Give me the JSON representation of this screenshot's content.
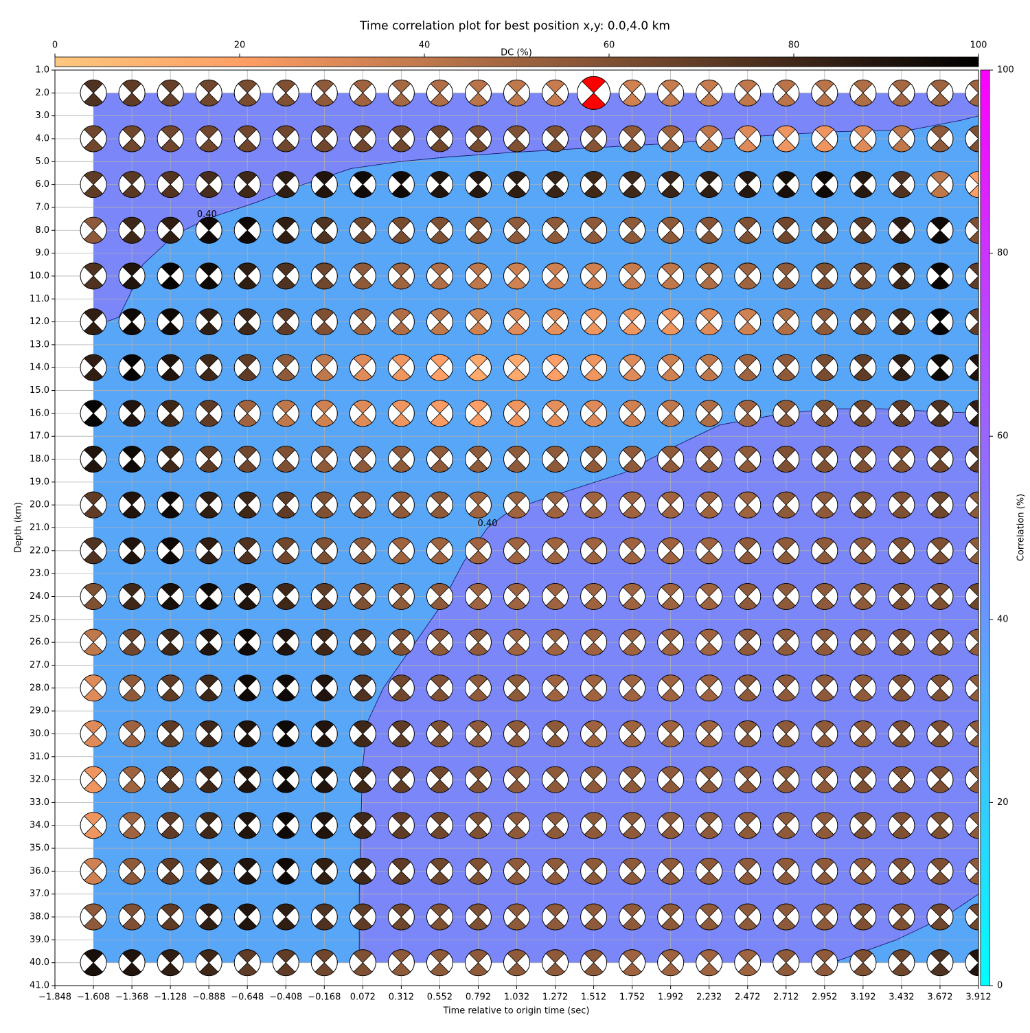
{
  "chart_data": {
    "type": "beachball-grid",
    "title": "Time correlation plot for best position x,y: 0.0,4.0 km",
    "x_label": "Time relative to origin time (sec)",
    "y_label": "Depth (km)",
    "dc_label": "DC (%)",
    "corr_label": "Correlation (%)",
    "xlim": [
      -1.848,
      3.912
    ],
    "xticks": [
      {
        "value": -1.848,
        "label": "−1.848"
      },
      {
        "value": -1.608,
        "label": "−1.608"
      },
      {
        "value": -1.368,
        "label": "−1.368"
      },
      {
        "value": -1.128,
        "label": "−1.128"
      },
      {
        "value": -0.888,
        "label": "−0.888"
      },
      {
        "value": -0.648,
        "label": "−0.648"
      },
      {
        "value": -0.408,
        "label": "−0.408"
      },
      {
        "value": -0.168,
        "label": "−0.168"
      },
      0.072,
      0.312,
      0.552,
      0.792,
      1.032,
      1.272,
      1.512,
      1.752,
      1.992,
      2.232,
      2.472,
      2.712,
      2.952,
      3.192,
      3.432,
      3.672,
      3.912
    ],
    "ylim": [
      41,
      1
    ],
    "yticks": [
      {
        "value": 1,
        "label": "1.0"
      },
      {
        "value": 2,
        "label": "2.0"
      },
      {
        "value": 3,
        "label": "3.0"
      },
      {
        "value": 4,
        "label": "4.0"
      },
      {
        "value": 5,
        "label": "5.0"
      },
      {
        "value": 6,
        "label": "6.0"
      },
      {
        "value": 7,
        "label": "7.0"
      },
      {
        "value": 8,
        "label": "8.0"
      },
      {
        "value": 9,
        "label": "9.0"
      },
      {
        "value": 10,
        "label": "10.0"
      },
      {
        "value": 11,
        "label": "11.0"
      },
      {
        "value": 12,
        "label": "12.0"
      },
      {
        "value": 13,
        "label": "13.0"
      },
      {
        "value": 14,
        "label": "14.0"
      },
      {
        "value": 15,
        "label": "15.0"
      },
      {
        "value": 16,
        "label": "16.0"
      },
      {
        "value": 17,
        "label": "17.0"
      },
      {
        "value": 18,
        "label": "18.0"
      },
      {
        "value": 19,
        "label": "19.0"
      },
      {
        "value": 20,
        "label": "20.0"
      },
      {
        "value": 21,
        "label": "21.0"
      },
      {
        "value": 22,
        "label": "22.0"
      },
      {
        "value": 23,
        "label": "23.0"
      },
      {
        "value": 24,
        "label": "24.0"
      },
      {
        "value": 25,
        "label": "25.0"
      },
      {
        "value": 26,
        "label": "26.0"
      },
      {
        "value": 27,
        "label": "27.0"
      },
      {
        "value": 28,
        "label": "28.0"
      },
      {
        "value": 29,
        "label": "29.0"
      },
      {
        "value": 30,
        "label": "30.0"
      },
      {
        "value": 31,
        "label": "31.0"
      },
      {
        "value": 32,
        "label": "32.0"
      },
      {
        "value": 33,
        "label": "33.0"
      },
      {
        "value": 34,
        "label": "34.0"
      },
      {
        "value": 35,
        "label": "35.0"
      },
      {
        "value": 36,
        "label": "36.0"
      },
      {
        "value": 37,
        "label": "37.0"
      },
      {
        "value": 38,
        "label": "38.0"
      },
      {
        "value": 39,
        "label": "39.0"
      },
      {
        "value": 40,
        "label": "40.0"
      },
      {
        "value": 41,
        "label": "41.0"
      }
    ],
    "grid": true,
    "dclim": [
      0,
      100
    ],
    "dcticks": [
      0,
      20,
      40,
      60,
      80,
      100
    ],
    "corrlim": [
      0,
      100
    ],
    "corrticks": [
      0,
      20,
      40,
      60,
      80,
      100
    ],
    "region_colors": {
      "high": "#7b86f8",
      "low": "#58a6f7"
    },
    "best": {
      "row": 0,
      "col": 13,
      "color": "#ff0000"
    },
    "times": [
      -1.608,
      -1.368,
      -1.128,
      -0.888,
      -0.648,
      -0.408,
      -0.168,
      0.072,
      0.312,
      0.552,
      0.792,
      1.032,
      1.272,
      1.512,
      1.752,
      1.992,
      2.232,
      2.472,
      2.712,
      2.952,
      3.192,
      3.432,
      3.672,
      3.912
    ],
    "depths": [
      2,
      4,
      6,
      8,
      10,
      12,
      14,
      16,
      18,
      20,
      22,
      24,
      26,
      28,
      30,
      32,
      34,
      36,
      38,
      40
    ],
    "dc": [
      [
        75,
        70,
        68,
        65,
        62,
        60,
        55,
        50,
        48,
        45,
        42,
        40,
        38,
        40,
        35,
        38,
        38,
        40,
        42,
        42,
        45,
        48,
        50,
        50
      ],
      [
        65,
        65,
        65,
        65,
        65,
        65,
        65,
        65,
        65,
        65,
        62,
        60,
        60,
        58,
        55,
        50,
        40,
        30,
        25,
        25,
        30,
        40,
        55,
        60
      ],
      [
        70,
        72,
        74,
        78,
        80,
        85,
        90,
        95,
        95,
        90,
        88,
        85,
        82,
        80,
        80,
        82,
        85,
        88,
        92,
        95,
        88,
        75,
        40,
        20
      ],
      [
        55,
        80,
        85,
        95,
        95,
        85,
        75,
        65,
        62,
        60,
        58,
        55,
        55,
        55,
        55,
        55,
        58,
        60,
        65,
        68,
        72,
        85,
        95,
        60
      ],
      [
        75,
        90,
        98,
        95,
        85,
        75,
        65,
        55,
        50,
        45,
        40,
        35,
        35,
        35,
        38,
        40,
        45,
        50,
        55,
        60,
        65,
        80,
        97,
        70
      ],
      [
        85,
        95,
        95,
        85,
        80,
        70,
        60,
        50,
        45,
        40,
        35,
        30,
        28,
        25,
        25,
        25,
        30,
        35,
        45,
        55,
        65,
        80,
        98,
        70
      ],
      [
        85,
        98,
        90,
        80,
        70,
        55,
        40,
        30,
        25,
        20,
        15,
        15,
        20,
        25,
        30,
        35,
        40,
        50,
        55,
        62,
        70,
        85,
        95,
        90
      ],
      [
        98,
        90,
        80,
        70,
        50,
        40,
        35,
        30,
        25,
        22,
        20,
        25,
        28,
        30,
        35,
        40,
        45,
        50,
        55,
        60,
        65,
        70,
        75,
        85
      ],
      [
        90,
        95,
        80,
        70,
        65,
        60,
        55,
        55,
        55,
        55,
        55,
        55,
        55,
        55,
        55,
        55,
        55,
        55,
        60,
        60,
        60,
        60,
        65,
        70
      ],
      [
        70,
        90,
        95,
        85,
        80,
        70,
        60,
        55,
        55,
        55,
        50,
        50,
        50,
        50,
        50,
        50,
        50,
        50,
        55,
        55,
        60,
        60,
        65,
        55
      ],
      [
        75,
        90,
        95,
        85,
        75,
        65,
        60,
        55,
        50,
        50,
        50,
        50,
        50,
        50,
        50,
        50,
        50,
        55,
        55,
        55,
        55,
        60,
        60,
        55
      ],
      [
        60,
        80,
        92,
        95,
        90,
        80,
        70,
        60,
        55,
        55,
        50,
        50,
        50,
        50,
        50,
        50,
        50,
        55,
        55,
        55,
        55,
        60,
        60,
        65
      ],
      [
        40,
        65,
        80,
        90,
        95,
        90,
        80,
        70,
        60,
        55,
        55,
        50,
        50,
        50,
        50,
        50,
        50,
        55,
        55,
        55,
        55,
        60,
        60,
        55
      ],
      [
        30,
        55,
        70,
        80,
        95,
        95,
        90,
        75,
        65,
        60,
        55,
        55,
        50,
        50,
        50,
        50,
        50,
        55,
        55,
        55,
        55,
        60,
        60,
        55
      ],
      [
        30,
        50,
        70,
        80,
        90,
        95,
        90,
        80,
        70,
        60,
        55,
        55,
        55,
        50,
        50,
        50,
        50,
        55,
        55,
        55,
        55,
        60,
        60,
        55
      ],
      [
        25,
        50,
        70,
        80,
        90,
        95,
        90,
        80,
        70,
        65,
        60,
        55,
        55,
        55,
        55,
        55,
        55,
        55,
        55,
        55,
        60,
        60,
        60,
        55
      ],
      [
        25,
        50,
        70,
        80,
        90,
        95,
        90,
        80,
        70,
        65,
        60,
        55,
        55,
        55,
        55,
        55,
        55,
        55,
        55,
        55,
        60,
        60,
        60,
        55
      ],
      [
        35,
        55,
        70,
        80,
        90,
        95,
        85,
        80,
        70,
        65,
        60,
        55,
        55,
        55,
        55,
        55,
        55,
        55,
        55,
        55,
        55,
        60,
        60,
        55
      ],
      [
        55,
        60,
        70,
        85,
        90,
        85,
        75,
        70,
        65,
        60,
        60,
        55,
        55,
        55,
        55,
        55,
        55,
        55,
        55,
        55,
        60,
        60,
        65,
        65
      ],
      [
        92,
        90,
        85,
        80,
        70,
        70,
        65,
        60,
        55,
        55,
        55,
        55,
        55,
        55,
        50,
        50,
        50,
        50,
        55,
        55,
        60,
        65,
        75,
        90
      ]
    ],
    "contours": [
      {
        "label": "0.40",
        "label_at": 5,
        "x": [
          -1.608,
          -1.45,
          -1.38,
          -1.3,
          -1.1,
          -0.9,
          -0.6,
          -0.3,
          0.0,
          0.3,
          0.6,
          1.0,
          1.5,
          2.0,
          2.5,
          3.0,
          3.5,
          3.8,
          3.912
        ],
        "y": [
          12.2,
          11.8,
          10.8,
          9.5,
          8.2,
          7.5,
          6.8,
          6.0,
          5.3,
          5.0,
          4.8,
          4.6,
          4.4,
          4.2,
          3.9,
          3.7,
          3.6,
          3.2,
          3.0
        ]
      },
      {
        "label": "0.40",
        "label_at": 10,
        "x": [
          0.05,
          0.05,
          0.06,
          0.07,
          0.1,
          0.2,
          0.35,
          0.45,
          0.55,
          0.7,
          0.85,
          1.0,
          1.3,
          1.7,
          2.0,
          2.3,
          2.7,
          3.0,
          3.3,
          3.6,
          3.912
        ],
        "y": [
          40,
          37,
          34,
          31.5,
          29.5,
          28,
          26.5,
          25.5,
          24.5,
          22.5,
          21,
          20.2,
          19.5,
          18.6,
          17.5,
          16.5,
          16.0,
          15.8,
          15.8,
          15.9,
          16.0
        ]
      },
      {
        "x": [
          3.0,
          3.4,
          3.7,
          3.912
        ],
        "y": [
          40,
          39,
          38,
          37
        ]
      }
    ]
  }
}
